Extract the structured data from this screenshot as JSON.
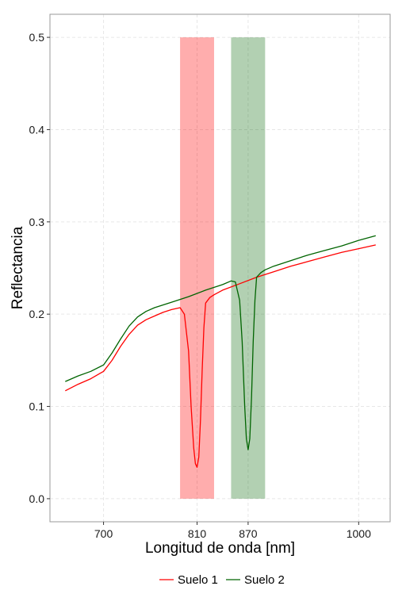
{
  "chart_data": {
    "type": "line",
    "xlabel": "Longitud de onda [nm]",
    "ylabel": "Reflectancia",
    "xlim": [
      637,
      1037
    ],
    "ylim": [
      -0.025,
      0.525
    ],
    "x_ticks": [
      {
        "value": 700,
        "label": "700"
      },
      {
        "value": 810,
        "label": "810"
      },
      {
        "value": 870,
        "label": "870"
      },
      {
        "value": 1000,
        "label": "1000"
      }
    ],
    "y_ticks": [
      {
        "value": 0.0,
        "label": "0.0"
      },
      {
        "value": 0.1,
        "label": "0.1"
      },
      {
        "value": 0.2,
        "label": "0.2"
      },
      {
        "value": 0.3,
        "label": "0.3"
      },
      {
        "value": 0.4,
        "label": "0.4"
      },
      {
        "value": 0.5,
        "label": "0.5"
      }
    ],
    "grid": true,
    "legend_position": "bottom",
    "bands": [
      {
        "x0": 790,
        "x1": 830,
        "y0": 0.0,
        "y1": 0.5,
        "color": "#ff0000",
        "opacity": 0.32
      },
      {
        "x0": 850,
        "x1": 890,
        "y0": 0.0,
        "y1": 0.5,
        "color": "#006400",
        "opacity": 0.3
      }
    ],
    "series": [
      {
        "name": "Suelo 1",
        "color": "#ff0000",
        "x": [
          655,
          670,
          685,
          700,
          710,
          720,
          730,
          740,
          750,
          760,
          770,
          780,
          790,
          795,
          800,
          803,
          806,
          808,
          810,
          812,
          814,
          816,
          818,
          820,
          825,
          830,
          840,
          860,
          880,
          900,
          920,
          940,
          960,
          980,
          1000,
          1020
        ],
        "y": [
          0.117,
          0.124,
          0.13,
          0.138,
          0.15,
          0.165,
          0.178,
          0.188,
          0.194,
          0.198,
          0.202,
          0.205,
          0.207,
          0.2,
          0.16,
          0.1,
          0.055,
          0.038,
          0.034,
          0.045,
          0.085,
          0.14,
          0.185,
          0.212,
          0.218,
          0.221,
          0.226,
          0.233,
          0.24,
          0.246,
          0.252,
          0.257,
          0.262,
          0.267,
          0.271,
          0.275
        ]
      },
      {
        "name": "Suelo 2",
        "color": "#006400",
        "x": [
          655,
          670,
          685,
          700,
          710,
          720,
          730,
          740,
          750,
          760,
          780,
          800,
          820,
          840,
          850,
          855,
          860,
          863,
          866,
          868,
          870,
          872,
          874,
          876,
          878,
          880,
          885,
          890,
          900,
          920,
          940,
          960,
          980,
          1000,
          1020
        ],
        "y": [
          0.127,
          0.133,
          0.138,
          0.145,
          0.158,
          0.173,
          0.187,
          0.197,
          0.203,
          0.207,
          0.213,
          0.219,
          0.226,
          0.232,
          0.236,
          0.235,
          0.215,
          0.17,
          0.1,
          0.065,
          0.053,
          0.065,
          0.11,
          0.17,
          0.215,
          0.24,
          0.245,
          0.248,
          0.252,
          0.258,
          0.264,
          0.269,
          0.274,
          0.28,
          0.285
        ]
      }
    ]
  }
}
